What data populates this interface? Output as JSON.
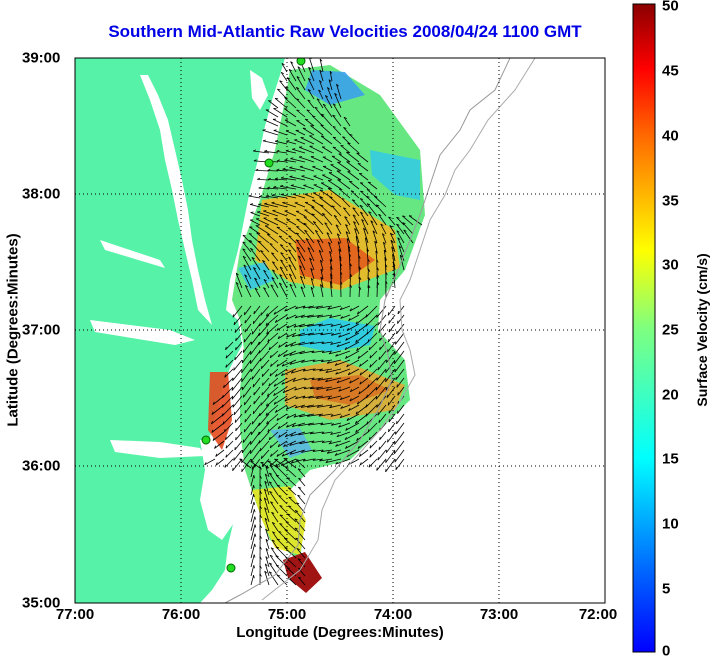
{
  "title": "Southern Mid-Atlantic Raw Velocities 2008/04/24 1100 GMT",
  "map": {
    "xlabel": "Longitude (Degrees:Minutes)",
    "ylabel": "Latitude (Degrees:Minutes)",
    "x_ticks": [
      "77:00",
      "76:00",
      "75:00",
      "74:00",
      "73:00",
      "72:00"
    ],
    "y_ticks": [
      "39:00",
      "38:00",
      "37:00",
      "36:00",
      "35:00"
    ],
    "lon_range": [
      -77,
      -72
    ],
    "lat_range": [
      35,
      39
    ],
    "grid": "dotted",
    "colors": {
      "land": "#55f2a8",
      "water": "#ffffff",
      "arrows": "#000000",
      "stations": "#22dd22"
    }
  },
  "colorbar": {
    "label": "Surface Velocity (cm/s)",
    "ticks": [
      "50",
      "45",
      "40",
      "35",
      "30",
      "25",
      "20",
      "15",
      "10",
      "5",
      "0"
    ],
    "range": [
      0,
      50
    ],
    "colormap": "jet"
  }
}
